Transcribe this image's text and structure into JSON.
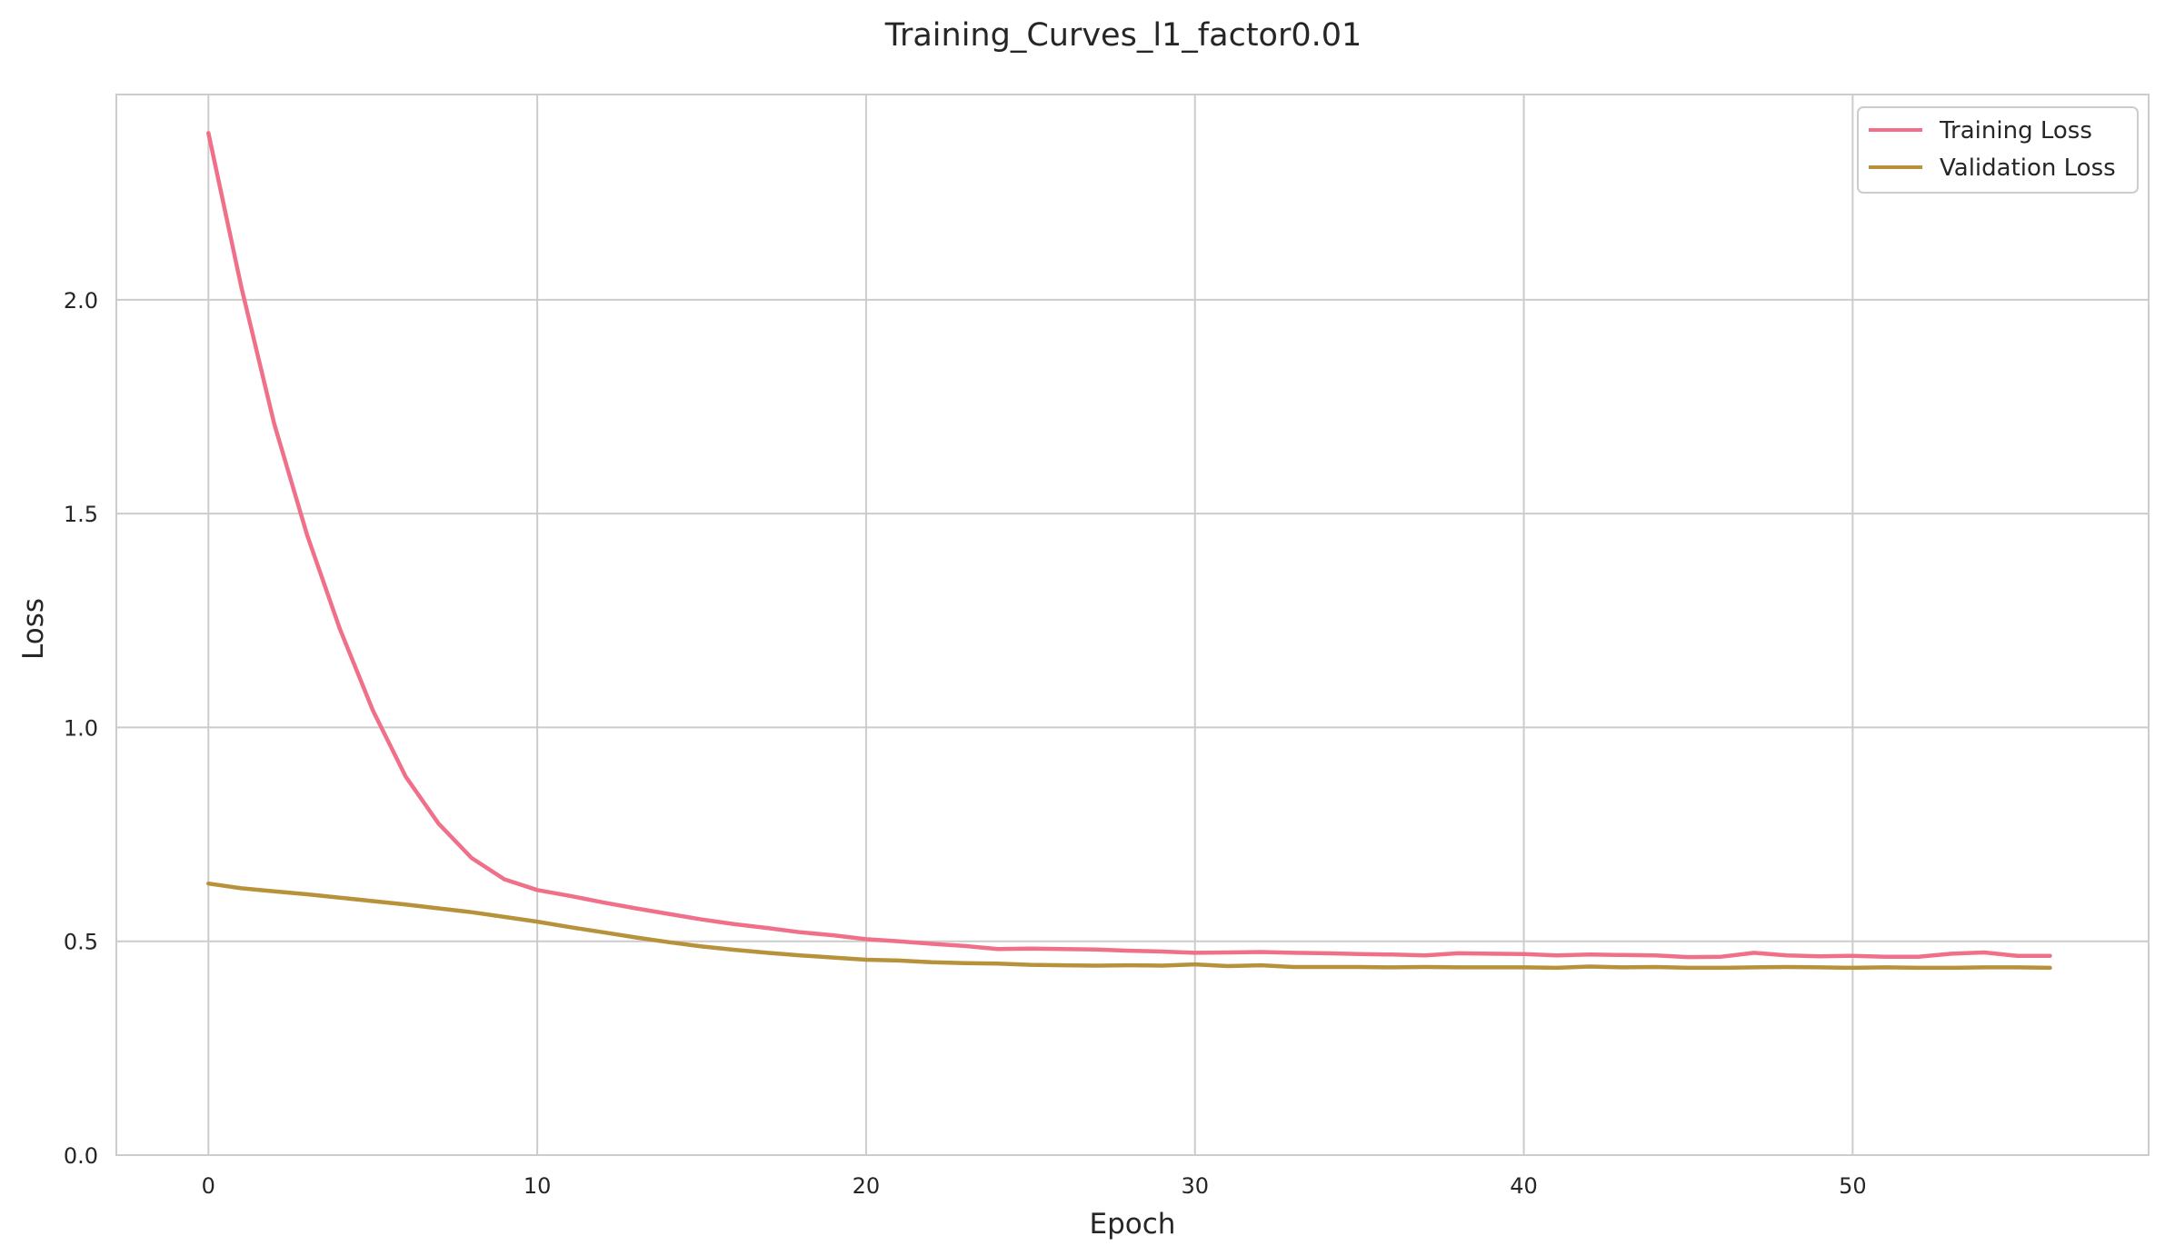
{
  "chart_data": {
    "type": "line",
    "title": "Training_Curves_l1_factor0.01",
    "xlabel": "Epoch",
    "ylabel": "Loss",
    "xlim": [
      -2.8,
      59
    ],
    "ylim": [
      0,
      2.48
    ],
    "xticks": [
      0,
      10,
      20,
      30,
      40,
      50
    ],
    "xtick_labels": [
      "0",
      "10",
      "20",
      "30",
      "40",
      "50"
    ],
    "yticks": [
      0.0,
      0.5,
      1.0,
      1.5,
      2.0
    ],
    "ytick_labels": [
      "0.0",
      "0.5",
      "1.0",
      "1.5",
      "2.0"
    ],
    "grid": true,
    "legend_position": "top-right",
    "x": [
      0,
      1,
      2,
      3,
      4,
      5,
      6,
      7,
      8,
      9,
      10,
      11,
      12,
      13,
      14,
      15,
      16,
      17,
      18,
      19,
      20,
      21,
      22,
      23,
      24,
      25,
      26,
      27,
      28,
      29,
      30,
      31,
      32,
      33,
      34,
      35,
      36,
      37,
      38,
      39,
      40,
      41,
      42,
      43,
      44,
      45,
      46,
      47,
      48,
      49,
      50,
      51,
      52,
      53,
      54,
      55,
      56
    ],
    "series": [
      {
        "name": "Training Loss",
        "color": "#f07089",
        "values": [
          2.39,
          2.03,
          1.71,
          1.45,
          1.23,
          1.04,
          0.885,
          0.775,
          0.695,
          0.645,
          0.62,
          0.606,
          0.591,
          0.577,
          0.564,
          0.551,
          0.54,
          0.531,
          0.521,
          0.514,
          0.505,
          0.5,
          0.494,
          0.489,
          0.482,
          0.483,
          0.482,
          0.481,
          0.478,
          0.476,
          0.473,
          0.474,
          0.475,
          0.473,
          0.472,
          0.47,
          0.469,
          0.467,
          0.472,
          0.471,
          0.47,
          0.467,
          0.469,
          0.468,
          0.467,
          0.463,
          0.464,
          0.473,
          0.467,
          0.465,
          0.466,
          0.464,
          0.464,
          0.471,
          0.474,
          0.466,
          0.466
        ]
      },
      {
        "name": "Validation Loss",
        "color": "#b8923a",
        "values": [
          0.635,
          0.624,
          0.617,
          0.61,
          0.602,
          0.594,
          0.586,
          0.577,
          0.568,
          0.557,
          0.546,
          0.533,
          0.521,
          0.509,
          0.498,
          0.488,
          0.48,
          0.473,
          0.467,
          0.462,
          0.457,
          0.455,
          0.451,
          0.449,
          0.448,
          0.445,
          0.444,
          0.443,
          0.444,
          0.443,
          0.446,
          0.442,
          0.444,
          0.44,
          0.44,
          0.44,
          0.439,
          0.44,
          0.439,
          0.439,
          0.439,
          0.438,
          0.441,
          0.439,
          0.44,
          0.438,
          0.438,
          0.439,
          0.44,
          0.439,
          0.438,
          0.439,
          0.438,
          0.438,
          0.439,
          0.439,
          0.438
        ]
      }
    ]
  }
}
